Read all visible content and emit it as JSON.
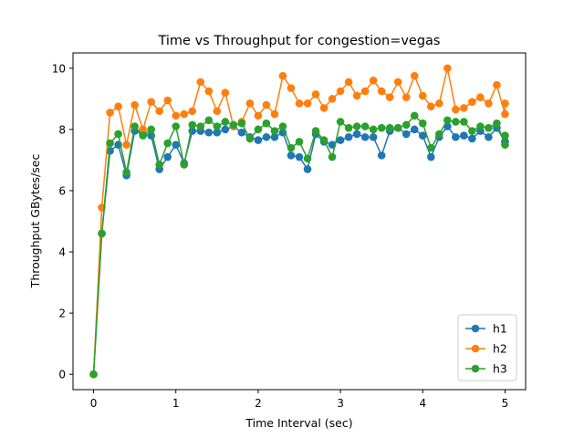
{
  "chart_data": {
    "type": "line",
    "title": "Time vs Throughput for congestion=vegas",
    "xlabel": "Time Interval (sec)",
    "ylabel": "Throughput GBytes/sec",
    "xlim": [
      -0.25,
      5.25
    ],
    "ylim": [
      -0.5,
      10.5
    ],
    "xticks": [
      0,
      1,
      2,
      3,
      4,
      5
    ],
    "yticks": [
      0,
      2,
      4,
      6,
      8,
      10
    ],
    "grid": false,
    "legend_position": "lower-right",
    "x": [
      0,
      0.1,
      0.2,
      0.3,
      0.4,
      0.5,
      0.6,
      0.7,
      0.8,
      0.9,
      1.0,
      1.1,
      1.2,
      1.3,
      1.4,
      1.5,
      1.6,
      1.7,
      1.8,
      1.9,
      2.0,
      2.1,
      2.2,
      2.3,
      2.4,
      2.5,
      2.6,
      2.7,
      2.8,
      2.9,
      3.0,
      3.1,
      3.2,
      3.3,
      3.4,
      3.5,
      3.6,
      3.7,
      3.8,
      3.9,
      4.0,
      4.1,
      4.2,
      4.3,
      4.4,
      4.5,
      4.6,
      4.7,
      4.8,
      4.9,
      5.0,
      5.0
    ],
    "series": [
      {
        "name": "h1",
        "color": "#1f77b4",
        "values": [
          0,
          4.6,
          7.3,
          7.5,
          6.5,
          7.95,
          7.85,
          7.8,
          6.7,
          7.1,
          7.5,
          6.9,
          7.95,
          7.95,
          7.9,
          7.9,
          8.0,
          8.1,
          7.9,
          7.75,
          7.65,
          7.75,
          7.75,
          7.9,
          7.15,
          7.1,
          6.7,
          7.85,
          7.6,
          7.5,
          7.65,
          7.75,
          7.85,
          7.75,
          7.75,
          7.15,
          7.95,
          8.05,
          7.85,
          8.0,
          7.8,
          7.1,
          7.75,
          8.1,
          7.75,
          7.8,
          7.7,
          7.95,
          7.75,
          8.05,
          7.6,
          7.6
        ]
      },
      {
        "name": "h2",
        "color": "#ff7f0e",
        "values": [
          0,
          5.45,
          8.55,
          8.75,
          7.5,
          8.8,
          8.0,
          8.9,
          8.6,
          8.95,
          8.45,
          8.5,
          8.6,
          9.55,
          9.25,
          8.6,
          9.2,
          8.1,
          8.25,
          8.85,
          8.45,
          8.8,
          8.5,
          9.75,
          9.35,
          8.85,
          8.85,
          9.15,
          8.7,
          9.0,
          9.25,
          9.55,
          9.1,
          9.25,
          9.6,
          9.25,
          9.05,
          9.55,
          9.05,
          9.75,
          9.1,
          8.75,
          8.85,
          10.0,
          8.65,
          8.7,
          8.9,
          9.05,
          8.85,
          9.45,
          8.5,
          8.85
        ]
      },
      {
        "name": "h3",
        "color": "#2ca02c",
        "values": [
          0,
          4.6,
          7.55,
          7.85,
          6.6,
          8.1,
          7.8,
          8.0,
          6.85,
          7.55,
          8.1,
          6.85,
          8.15,
          8.1,
          8.3,
          8.1,
          8.25,
          8.15,
          8.2,
          7.7,
          8.0,
          8.2,
          7.95,
          8.1,
          7.4,
          7.6,
          7.05,
          7.95,
          7.65,
          7.1,
          8.25,
          8.05,
          8.1,
          8.1,
          8.0,
          8.05,
          8.05,
          8.05,
          8.15,
          8.45,
          8.2,
          7.4,
          7.85,
          8.3,
          8.25,
          8.25,
          7.95,
          8.1,
          8.05,
          8.2,
          7.5,
          7.8
        ]
      }
    ]
  }
}
